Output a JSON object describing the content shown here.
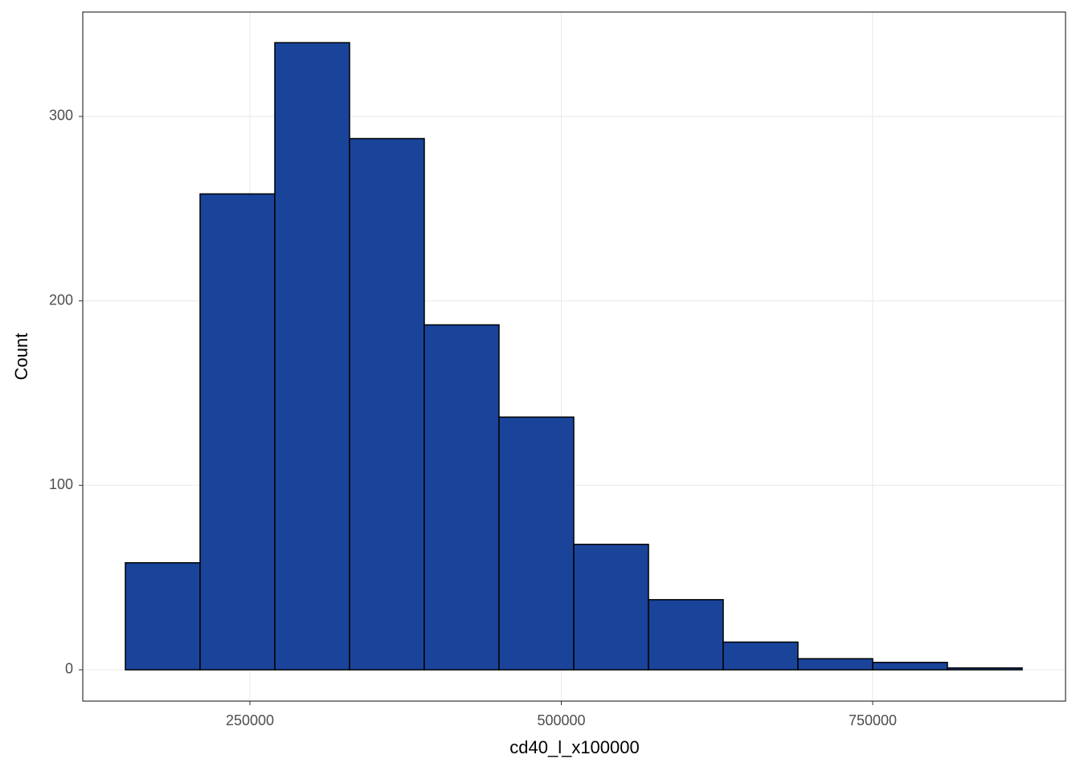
{
  "chart_data": {
    "type": "histogram",
    "x_label": "cd40_l_x100000",
    "y_label": "Count",
    "bins": [
      150000,
      210000,
      270000,
      330000,
      390000,
      450000,
      510000,
      570000,
      630000,
      690000,
      750000,
      810000,
      870000
    ],
    "values": [
      58,
      258,
      340,
      288,
      187,
      137,
      68,
      38,
      15,
      6,
      4,
      1
    ],
    "color": "#19449a",
    "edge_color": "#000000",
    "xlim": [
      115800,
      904850
    ],
    "ylim": [
      -17,
      356.6
    ],
    "xticks": [
      250000,
      500000,
      750000
    ],
    "yticks": [
      0,
      100,
      200,
      300
    ],
    "grid": true
  }
}
